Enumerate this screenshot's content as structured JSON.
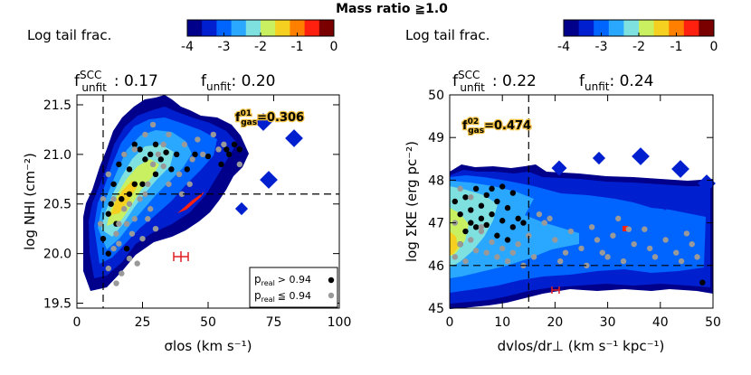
{
  "title": "Mass ratio ≧1.0",
  "colorbar": {
    "label": "Log tail frac.",
    "ticks": [
      "-4",
      "-3",
      "-2",
      "-1",
      "0"
    ],
    "colors": [
      "#00008b",
      "#0020d0",
      "#0064ff",
      "#2aa8ff",
      "#7fe0e0",
      "#c8f060",
      "#f5d020",
      "#ff8000",
      "#ff2010",
      "#7a0000"
    ]
  },
  "chart_data": [
    {
      "type": "scatter",
      "panel": "left",
      "xlabel": "σlos (km s⁻¹)",
      "ylabel": "log NHI (cm⁻²)",
      "xlim": [
        0,
        100
      ],
      "ylim": [
        19.45,
        21.6
      ],
      "xticks": [
        "0",
        "25",
        "50",
        "75",
        "100"
      ],
      "yticks": [
        "19.5",
        "20.0",
        "20.5",
        "21.0",
        "21.5"
      ],
      "ytick_values": [
        19.5,
        20.0,
        20.5,
        21.0,
        21.5
      ],
      "xtick_values": [
        0,
        25,
        50,
        75,
        100
      ],
      "f_unfit_scc_label": "f",
      "f_unfit_scc_sup": "SCC",
      "f_unfit_scc_sub": "unfit",
      "f_unfit_scc": ": 0.17",
      "f_unfit_label": "f",
      "f_unfit_sub": "unfit",
      "f_unfit": ": 0.20",
      "fgas_sup": "01",
      "fgas_sub": "gas",
      "fgas": "=0.306",
      "vline": 10,
      "hline": 20.6,
      "legend": {
        "high": "> 0.94",
        "low": "≦ 0.94",
        "p": "p",
        "p_sub": "real"
      },
      "series": [
        {
          "name": "preal > 0.94",
          "color": "#000000",
          "points": [
            [
              10,
              20.15
            ],
            [
              12,
              20.4
            ],
            [
              14,
              20.7
            ],
            [
              13,
              20.5
            ],
            [
              16,
              20.9
            ],
            [
              18,
              21.0
            ],
            [
              20,
              20.85
            ],
            [
              22,
              21.1
            ],
            [
              24,
              21.05
            ],
            [
              26,
              20.95
            ],
            [
              28,
              21.0
            ],
            [
              30,
              21.1
            ],
            [
              32,
              20.95
            ],
            [
              30,
              20.8
            ],
            [
              25,
              20.7
            ],
            [
              20,
              20.6
            ],
            [
              15,
              20.3
            ],
            [
              19,
              20.05
            ],
            [
              36,
              20.85
            ],
            [
              38,
              21.0
            ],
            [
              42,
              20.85
            ],
            [
              58,
              21.0
            ],
            [
              60,
              21.1
            ],
            [
              62,
              21.05
            ],
            [
              55,
              20.9
            ],
            [
              57,
              21.05
            ],
            [
              50,
              20.98
            ],
            [
              22,
              20.7
            ],
            [
              17,
              20.55
            ],
            [
              12,
              20.0
            ],
            [
              45,
              21.0
            ],
            [
              34,
              21.02
            ]
          ]
        },
        {
          "name": "preal ≦ 0.94",
          "color": "#999999",
          "points": [
            [
              12,
              19.85
            ],
            [
              14,
              20.05
            ],
            [
              15,
              20.2
            ],
            [
              16,
              20.3
            ],
            [
              18,
              20.45
            ],
            [
              20,
              20.5
            ],
            [
              22,
              20.35
            ],
            [
              24,
              20.55
            ],
            [
              26,
              20.6
            ],
            [
              28,
              20.45
            ],
            [
              27,
              20.7
            ],
            [
              29,
              20.9
            ],
            [
              31,
              21.0
            ],
            [
              33,
              21.1
            ],
            [
              35,
              21.2
            ],
            [
              33,
              20.88
            ],
            [
              35,
              20.7
            ],
            [
              39,
              20.8
            ],
            [
              41,
              21.1
            ],
            [
              44,
              20.95
            ],
            [
              46,
              21.15
            ],
            [
              48,
              21.0
            ],
            [
              52,
              21.2
            ],
            [
              54,
              21.05
            ],
            [
              56,
              21.1
            ],
            [
              62,
              20.9
            ],
            [
              20,
              19.95
            ],
            [
              17,
              19.8
            ],
            [
              15,
              19.7
            ],
            [
              23,
              19.9
            ],
            [
              25,
              20.15
            ],
            [
              21,
              20.2
            ],
            [
              19,
              20.3
            ],
            [
              27,
              20.35
            ],
            [
              30,
              20.25
            ],
            [
              40,
              20.6
            ],
            [
              43,
              20.7
            ],
            [
              18,
              21.0
            ],
            [
              22,
              21.05
            ],
            [
              26,
              21.2
            ],
            [
              29,
              21.3
            ],
            [
              14,
              20.55
            ],
            [
              12,
              20.8
            ],
            [
              9,
              20.3
            ],
            [
              10,
              20.55
            ],
            [
              16,
              20.1
            ]
          ]
        }
      ]
    },
    {
      "type": "scatter",
      "panel": "right",
      "xlabel": "dvlos/dr⊥ (km s⁻¹ kpc⁻¹)",
      "ylabel": "log ΣKE (erg pc⁻²)",
      "xlim": [
        0,
        50
      ],
      "ylim": [
        45,
        50
      ],
      "xticks": [
        "0",
        "10",
        "20",
        "30",
        "40",
        "50"
      ],
      "yticks": [
        "45",
        "46",
        "47",
        "48",
        "49",
        "50"
      ],
      "ytick_values": [
        45,
        46,
        47,
        48,
        49,
        50
      ],
      "xtick_values": [
        0,
        10,
        20,
        30,
        40,
        50
      ],
      "f_unfit_scc_label": "f",
      "f_unfit_scc_sup": "SCC",
      "f_unfit_scc_sub": "unfit",
      "f_unfit_scc": ": 0.22",
      "f_unfit_label": "f",
      "f_unfit_sub": "unfit",
      "f_unfit": ": 0.24",
      "fgas_sup": "02",
      "fgas_sub": "gas",
      "fgas": "=0.474",
      "vline": 15,
      "hline": 46.0,
      "series": [
        {
          "name": "preal > 0.94",
          "color": "#000000",
          "points": [
            [
              1,
              47.5
            ],
            [
              2,
              47.2
            ],
            [
              3,
              47.6
            ],
            [
              4,
              47.3
            ],
            [
              5,
              47.8
            ],
            [
              6,
              47.4
            ],
            [
              7,
              47.65
            ],
            [
              8,
              47.2
            ],
            [
              9,
              47.5
            ],
            [
              10,
              47.85
            ],
            [
              11,
              47.35
            ],
            [
              12,
              47.7
            ],
            [
              13,
              47.1
            ],
            [
              3,
              46.8
            ],
            [
              5,
              46.9
            ],
            [
              7,
              46.95
            ],
            [
              9,
              46.7
            ],
            [
              11,
              46.6
            ],
            [
              14,
              47.0
            ],
            [
              2,
              46.5
            ],
            [
              4,
              47.0
            ],
            [
              6,
              47.1
            ],
            [
              8,
              47.8
            ],
            [
              10,
              47.05
            ],
            [
              12,
              46.9
            ],
            [
              48,
              45.6
            ]
          ]
        },
        {
          "name": "preal ≦ 0.94",
          "color": "#999999",
          "points": [
            [
              1,
              46.2
            ],
            [
              2,
              46.5
            ],
            [
              3,
              46.1
            ],
            [
              4,
              46.6
            ],
            [
              5,
              46.35
            ],
            [
              6,
              46.8
            ],
            [
              7,
              46.3
            ],
            [
              8,
              46.55
            ],
            [
              9,
              46.2
            ],
            [
              10,
              46.4
            ],
            [
              11,
              46.1
            ],
            [
              12,
              46.3
            ],
            [
              13,
              46.5
            ],
            [
              15,
              46.7
            ],
            [
              16,
              46.2
            ],
            [
              18,
              47.0
            ],
            [
              20,
              46.6
            ],
            [
              21,
              46.1
            ],
            [
              23,
              46.8
            ],
            [
              25,
              46.4
            ],
            [
              27,
              46.9
            ],
            [
              29,
              46.3
            ],
            [
              31,
              46.7
            ],
            [
              33,
              46.1
            ],
            [
              35,
              46.5
            ],
            [
              37,
              46.85
            ],
            [
              39,
              46.2
            ],
            [
              41,
              46.6
            ],
            [
              43,
              46.3
            ],
            [
              45,
              46.75
            ],
            [
              47,
              46.2
            ],
            [
              17,
              47.2
            ],
            [
              19,
              47.1
            ],
            [
              22,
              46.3
            ],
            [
              26,
              46.0
            ],
            [
              30,
              46.2
            ],
            [
              34,
              46.85
            ],
            [
              38,
              46.4
            ],
            [
              44,
              46.1
            ],
            [
              1,
              47.0
            ],
            [
              2,
              47.8
            ],
            [
              4,
              47.6
            ],
            [
              6,
              46.9
            ],
            [
              14,
              46.0
            ],
            [
              46,
              46.5
            ],
            [
              32,
              47.1
            ],
            [
              28,
              46.6
            ]
          ]
        }
      ]
    }
  ]
}
